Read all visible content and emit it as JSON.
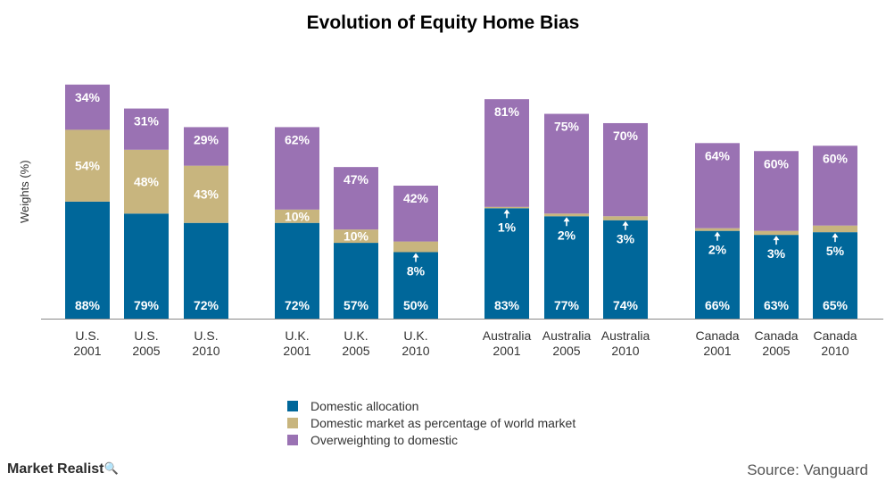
{
  "chart_data": {
    "type": "bar",
    "stacked": true,
    "title": "Evolution of Equity Home Bias",
    "ylabel": "Weights (%)",
    "categories": [
      [
        "U.S.",
        "2001"
      ],
      [
        "U.S.",
        "2005"
      ],
      [
        "U.S.",
        "2010"
      ],
      [
        "U.K.",
        "2001"
      ],
      [
        "U.K.",
        "2005"
      ],
      [
        "U.K.",
        "2010"
      ],
      [
        "Australia",
        "2001"
      ],
      [
        "Australia",
        "2005"
      ],
      [
        "Australia",
        "2010"
      ],
      [
        "Canada",
        "2001"
      ],
      [
        "Canada",
        "2005"
      ],
      [
        "Canada",
        "2010"
      ]
    ],
    "series": [
      {
        "name": "Domestic allocation",
        "color": "#00679a",
        "values": [
          88,
          79,
          72,
          72,
          57,
          50,
          83,
          77,
          74,
          66,
          63,
          65
        ],
        "labels": [
          "88%",
          "79%",
          "72%",
          "72%",
          "57%",
          "50%",
          "83%",
          "77%",
          "74%",
          "66%",
          "63%",
          "65%"
        ]
      },
      {
        "name": "Domestic market as percentage of world market",
        "color": "#c8b57e",
        "values": [
          54,
          48,
          43,
          10,
          10,
          8,
          1,
          2,
          3,
          2,
          3,
          5
        ],
        "labels": [
          "54%",
          "48%",
          "43%",
          "10%",
          "10%",
          "8%",
          "1%",
          "2%",
          "3%",
          "2%",
          "3%",
          "5%"
        ]
      },
      {
        "name": "Overweighting to domestic",
        "color": "#9a72b3",
        "values": [
          34,
          31,
          29,
          62,
          47,
          42,
          81,
          75,
          70,
          64,
          60,
          60
        ],
        "labels": [
          "34%",
          "31%",
          "29%",
          "62%",
          "47%",
          "42%",
          "81%",
          "75%",
          "70%",
          "64%",
          "60%",
          "60%"
        ]
      }
    ],
    "grid": false,
    "legend": "bottom-center"
  },
  "branding": {
    "logo_text": "Market Realist"
  },
  "source_note": "Source: Vanguard"
}
